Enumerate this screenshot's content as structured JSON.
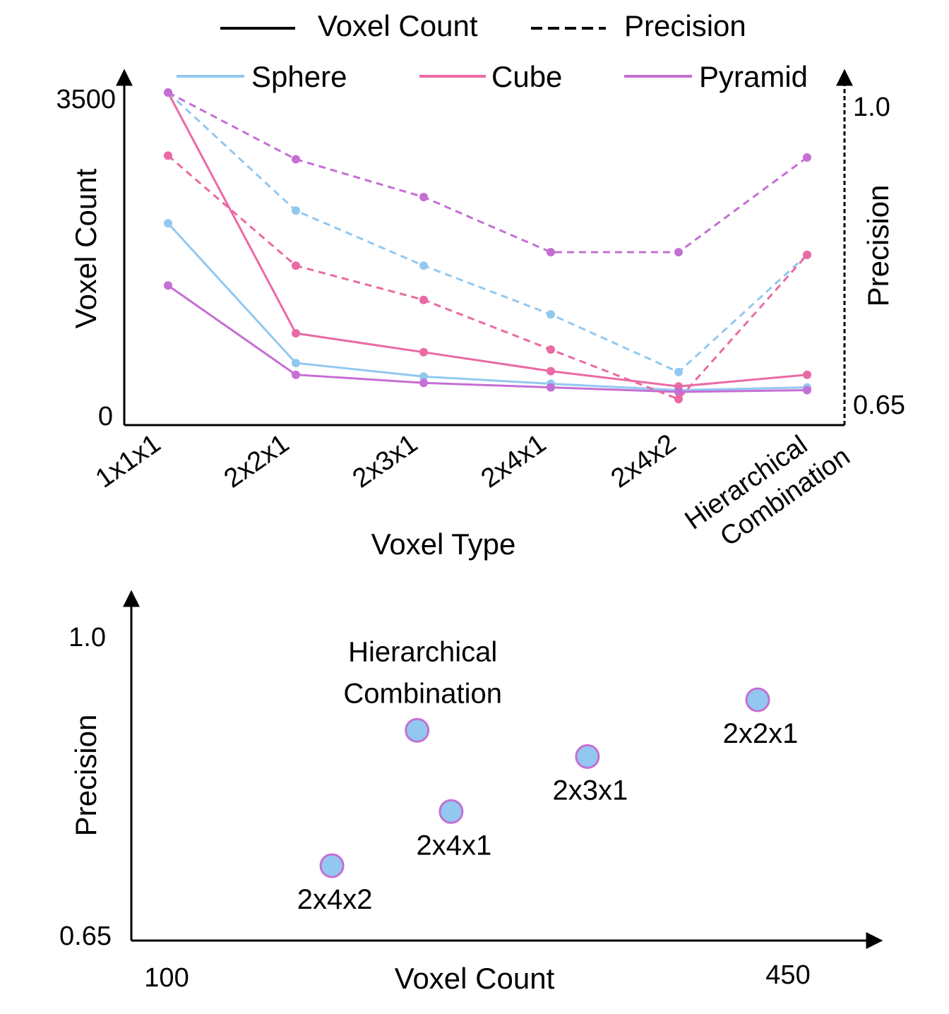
{
  "chart_data": [
    {
      "type": "line",
      "title": "",
      "xlabel": "Voxel Type",
      "ylabel": "Voxel Count",
      "y2label": "Precision",
      "categories": [
        "1x1x1",
        "2x2x1",
        "2x3x1",
        "2x4x1",
        "2x4x2",
        "Hierarchical Combination"
      ],
      "ylim": [
        0,
        3500
      ],
      "y2lim": [
        0.65,
        1.0
      ],
      "yticks": [
        "0",
        "3500"
      ],
      "y2ticks": [
        "0.65",
        "1.0"
      ],
      "style_legend": [
        {
          "name": "Voxel Count",
          "dash": "solid"
        },
        {
          "name": "Precision",
          "dash": "dashed"
        }
      ],
      "color_legend": [
        {
          "name": "Sphere",
          "color": "#92c8f0"
        },
        {
          "name": "Cube",
          "color": "#ea6aa4"
        },
        {
          "name": "Pyramid",
          "color": "#c46fd3"
        }
      ],
      "series": [
        {
          "name": "Sphere",
          "metric": "Voxel Count",
          "color": "#92c8f0",
          "dash": "solid",
          "values": [
            2050,
            500,
            350,
            270,
            200,
            230
          ]
        },
        {
          "name": "Cube",
          "metric": "Voxel Count",
          "color": "#ea6aa4",
          "dash": "solid",
          "values": [
            3500,
            830,
            620,
            410,
            240,
            370
          ]
        },
        {
          "name": "Pyramid",
          "metric": "Voxel Count",
          "color": "#c46fd3",
          "dash": "solid",
          "values": [
            1360,
            370,
            280,
            230,
            180,
            200
          ]
        },
        {
          "name": "Sphere",
          "metric": "Precision",
          "color": "#92c8f0",
          "dash": "dashed",
          "values": [
            1.0,
            0.869,
            0.808,
            0.754,
            0.69,
            0.82
          ]
        },
        {
          "name": "Cube",
          "metric": "Precision",
          "color": "#ea6aa4",
          "dash": "dashed",
          "values": [
            0.93,
            0.808,
            0.77,
            0.715,
            0.66,
            0.82
          ]
        },
        {
          "name": "Pyramid",
          "metric": "Precision",
          "color": "#c46fd3",
          "dash": "dashed",
          "values": [
            1.0,
            0.926,
            0.884,
            0.823,
            0.823,
            0.928
          ]
        }
      ]
    },
    {
      "type": "scatter",
      "title": "",
      "xlabel": "Voxel Count",
      "ylabel": "Precision",
      "xlim": [
        100,
        450
      ],
      "ylim": [
        0.65,
        1.0
      ],
      "xticks": [
        "100",
        "450"
      ],
      "yticks": [
        "0.65",
        "1.0"
      ],
      "marker_fill": "#92c8f0",
      "marker_edge": "#c46fd3",
      "points": [
        {
          "label": "Hierarchical Combination",
          "label_lines": [
            "Hierarchical",
            "Combination"
          ],
          "x": 250,
          "y": 0.88,
          "label_position": "above"
        },
        {
          "label": "2x2x1",
          "label_lines": [
            "2x2x1"
          ],
          "x": 450,
          "y": 0.915,
          "label_position": "below"
        },
        {
          "label": "2x3x1",
          "label_lines": [
            "2x3x1"
          ],
          "x": 350,
          "y": 0.85,
          "label_position": "below"
        },
        {
          "label": "2x4x1",
          "label_lines": [
            "2x4x1"
          ],
          "x": 270,
          "y": 0.787,
          "label_position": "below"
        },
        {
          "label": "2x4x2",
          "label_lines": [
            "2x4x2"
          ],
          "x": 200,
          "y": 0.725,
          "label_position": "below"
        }
      ]
    }
  ]
}
